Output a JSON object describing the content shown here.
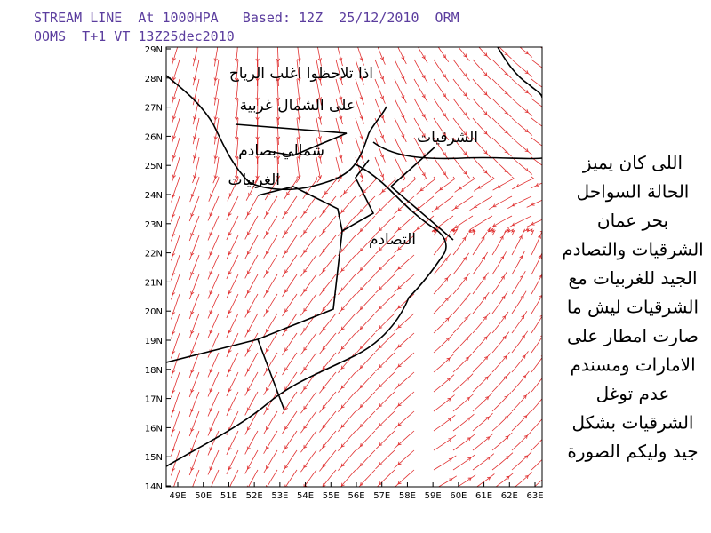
{
  "header": {
    "line1": "STREAM LINE  At 1000HPA   Based: 12Z  25/12/2010  ORM",
    "line2": "OOMS  T+1 VT 13Z25dec2010"
  },
  "map": {
    "lat_labels": [
      "29N",
      "28N",
      "27N",
      "26N",
      "25N",
      "24N",
      "23N",
      "22N",
      "21N",
      "20N",
      "19N",
      "18N",
      "17N",
      "16N",
      "15N",
      "14N"
    ],
    "lon_labels": [
      "49E",
      "50E",
      "51E",
      "52E",
      "53E",
      "54E",
      "55E",
      "56E",
      "57E",
      "58E",
      "59E",
      "60E",
      "61E",
      "62E",
      "63E"
    ],
    "annotations": [
      "اذا تلاحظوا اغلب الرياح",
      "على الشمال غربية",
      "الشرقيات",
      "شمالي بصادم",
      "الغربيات",
      "التصادم"
    ]
  },
  "side_note": [
    "اللى كان يميز",
    "الحالة السواحل",
    "بحر عمان",
    "الشرقيات والتصادم",
    "الجيد للغربيات مع",
    "الشرقيات ليش ما",
    "صارت امطار على",
    "الامارات ومسندم",
    "عدم توغل",
    "الشرقيات بشكل",
    "جيد وليكم الصورة"
  ]
}
